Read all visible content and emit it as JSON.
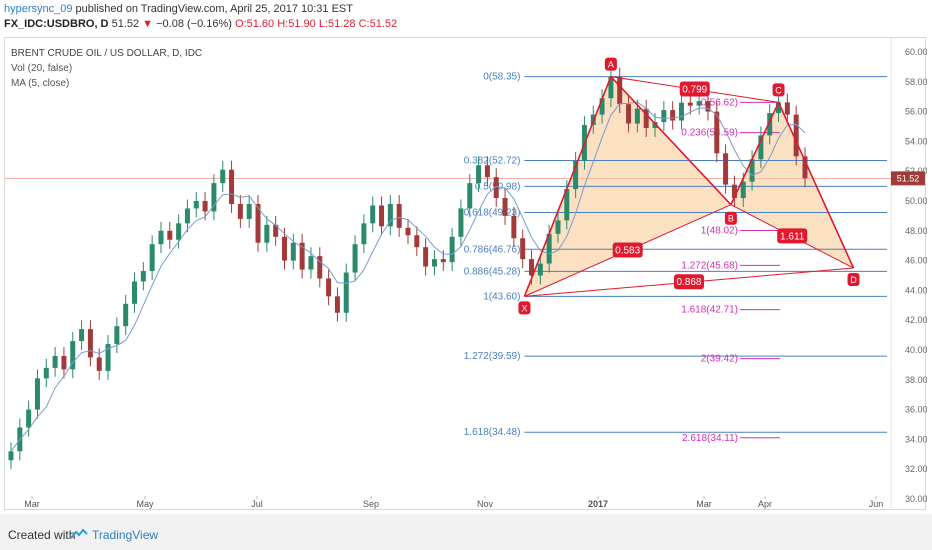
{
  "header": {
    "user": "hypersync_09",
    "published_text": " published on TradingView.com, April 25, 2017 10:31 EST",
    "symbol": "FX_IDC:USDBRO, D",
    "last": "51.52",
    "change": "−0.08 (−0.16%)",
    "o": "O:51.60",
    "h": "H:51.90",
    "l": "L:51.28",
    "c": "C:51.52"
  },
  "legend": {
    "title": "BRENT CRUDE OIL / US DOLLAR, D, IDC",
    "vol": "Vol (20, false)",
    "ma": "MA (5, close)"
  },
  "footer": {
    "created": "Created with",
    "brand": "TradingView"
  },
  "chart_data": {
    "type": "candlestick",
    "ylim": [
      30,
      60
    ],
    "y_ticks": [
      "30.00",
      "32.00",
      "34.00",
      "36.00",
      "38.00",
      "40.00",
      "42.00",
      "44.00",
      "46.00",
      "48.00",
      "50.00",
      "52.00",
      "54.00",
      "56.00",
      "58.00",
      "60.00"
    ],
    "x_ticks": [
      "Mar",
      "May",
      "Jul",
      "Sep",
      "Nov",
      "2017",
      "Mar",
      "Apr",
      "Jun"
    ],
    "last_price": 51.52,
    "last_price_label": "51.52",
    "colors": {
      "up": "#2a8a6a",
      "down": "#a33a3a",
      "pattern_line": "#e0192f",
      "pattern_fill": "#f7c98f",
      "fib_blue": "#4a7fc1",
      "fib_pink": "#d32fb5",
      "price_line": "#f07b7b"
    },
    "price_path": [
      [
        0,
        33.2
      ],
      [
        1,
        34.8
      ],
      [
        2,
        36.0
      ],
      [
        3,
        38.1
      ],
      [
        4,
        38.8
      ],
      [
        5,
        39.6
      ],
      [
        6,
        38.7
      ],
      [
        7,
        40.6
      ],
      [
        8,
        41.4
      ],
      [
        9,
        39.5
      ],
      [
        10,
        38.6
      ],
      [
        11,
        40.4
      ],
      [
        12,
        41.6
      ],
      [
        13,
        43.1
      ],
      [
        14,
        44.6
      ],
      [
        15,
        45.3
      ],
      [
        16,
        47.1
      ],
      [
        17,
        48.0
      ],
      [
        18,
        47.4
      ],
      [
        19,
        48.5
      ],
      [
        20,
        49.5
      ],
      [
        21,
        50.0
      ],
      [
        22,
        49.3
      ],
      [
        23,
        51.2
      ],
      [
        24,
        52.1
      ],
      [
        25,
        49.8
      ],
      [
        26,
        48.8
      ],
      [
        27,
        49.8
      ],
      [
        28,
        47.2
      ],
      [
        29,
        48.4
      ],
      [
        30,
        47.6
      ],
      [
        31,
        46.0
      ],
      [
        32,
        47.2
      ],
      [
        33,
        45.4
      ],
      [
        34,
        46.3
      ],
      [
        35,
        44.8
      ],
      [
        36,
        43.6
      ],
      [
        37,
        42.5
      ],
      [
        38,
        45.2
      ],
      [
        39,
        47.1
      ],
      [
        40,
        48.5
      ],
      [
        41,
        49.7
      ],
      [
        42,
        48.3
      ],
      [
        43,
        49.8
      ],
      [
        44,
        48.2
      ],
      [
        45,
        47.7
      ],
      [
        46,
        46.9
      ],
      [
        47,
        45.6
      ],
      [
        48,
        46.1
      ],
      [
        49,
        45.9
      ],
      [
        50,
        47.6
      ],
      [
        51,
        49.5
      ],
      [
        52,
        51.2
      ],
      [
        53,
        52.4
      ],
      [
        54,
        51.6
      ],
      [
        55,
        50.2
      ],
      [
        56,
        49.0
      ],
      [
        57,
        47.5
      ],
      [
        58,
        46.1
      ],
      [
        59,
        45.0
      ],
      [
        60,
        45.8
      ],
      [
        61,
        47.8
      ],
      [
        62,
        48.7
      ],
      [
        63,
        50.8
      ],
      [
        64,
        52.7
      ],
      [
        65,
        55.1
      ],
      [
        66,
        55.8
      ],
      [
        67,
        56.9
      ],
      [
        68,
        58.35
      ],
      [
        69,
        56.5
      ],
      [
        70,
        55.2
      ],
      [
        71,
        56.2
      ],
      [
        72,
        54.9
      ],
      [
        73,
        55.3
      ],
      [
        74,
        56.1
      ],
      [
        75,
        55.4
      ],
      [
        76,
        56.6
      ],
      [
        77,
        56.4
      ],
      [
        78,
        56.7
      ],
      [
        79,
        56.0
      ],
      [
        80,
        53.2
      ],
      [
        81,
        51.1
      ],
      [
        82,
        50.2
      ],
      [
        83,
        51.3
      ],
      [
        84,
        52.8
      ],
      [
        85,
        54.4
      ],
      [
        86,
        55.9
      ],
      [
        87,
        56.62
      ],
      [
        88,
        55.8
      ],
      [
        89,
        53.0
      ],
      [
        90,
        51.52
      ]
    ],
    "fib_retracement": {
      "levels": [
        {
          "label": "0(58.35)",
          "price": 58.35
        },
        {
          "label": "0.382(52.72)",
          "price": 52.72
        },
        {
          "label": "0.5(50.98)",
          "price": 50.98
        },
        {
          "label": "0.618(49.23)",
          "price": 49.23
        },
        {
          "label": "0.786(46.76)",
          "price": 46.76
        },
        {
          "label": "0.886(45.28)",
          "price": 45.28
        },
        {
          "label": "1(43.60)",
          "price": 43.6
        },
        {
          "label": "1.272(39.59)",
          "price": 39.59
        },
        {
          "label": "1.618(34.48)",
          "price": 34.48
        }
      ]
    },
    "fib_extension": {
      "levels": [
        {
          "label": "0(56.62)",
          "price": 56.62
        },
        {
          "label": "0.236(54.59)",
          "price": 54.59
        },
        {
          "label": "1(48.02)",
          "price": 48.02
        },
        {
          "label": "1.272(45.68)",
          "price": 45.68
        },
        {
          "label": "1.618(42.71)",
          "price": 42.71
        },
        {
          "label": "2(39.42)",
          "price": 39.42
        },
        {
          "label": "2.618(34.11)",
          "price": 34.11
        }
      ]
    },
    "pattern": {
      "points": [
        {
          "name": "X",
          "price": 43.6
        },
        {
          "name": "A",
          "price": 58.35
        },
        {
          "name": "B",
          "price": 49.75
        },
        {
          "name": "C",
          "price": 56.62
        },
        {
          "name": "D",
          "price": 45.5
        }
      ],
      "ratios": [
        {
          "label": "0.799"
        },
        {
          "label": "0.583"
        },
        {
          "label": "1.611"
        },
        {
          "label": "0.868"
        }
      ]
    }
  }
}
